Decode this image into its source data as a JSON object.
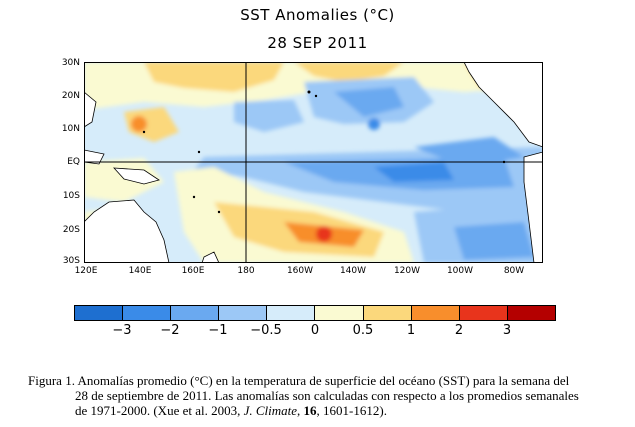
{
  "title": "SST Anomalies (°C)",
  "date": "28 SEP 2011",
  "map": {
    "lat_labels": [
      "30N",
      "20N",
      "10N",
      "EQ",
      "10S",
      "20S",
      "30S"
    ],
    "lon_labels": [
      "120E",
      "140E",
      "160E",
      "180",
      "160W",
      "140W",
      "120W",
      "100W",
      "80W"
    ],
    "extent": {
      "lon_min": 120,
      "lon_max": 290,
      "lat_min": -30,
      "lat_max": 30
    },
    "reference_lines": [
      "EQ",
      "180"
    ]
  },
  "colorbar": {
    "labels": [
      "−3",
      "−2",
      "−1",
      "−0.5",
      "0",
      "0.5",
      "1",
      "2",
      "3"
    ],
    "colors": [
      "#1e6fd0",
      "#3a8be8",
      "#6aa9f0",
      "#9cc8f6",
      "#d6ecfa",
      "#fafad2",
      "#fbd87c",
      "#f88e2c",
      "#e8341c",
      "#b40000"
    ]
  },
  "caption": {
    "line1": "Figura 1. Anomalías promedio (°C) en la temperatura de superficie del océano (SST) para la semana del",
    "line2": "28 de septiembre de 2011.  Las anomalías son calculadas con respecto a los promedios semanales",
    "line3_pre": "de 1971-2000. (Xue et al. 2003, ",
    "line3_journal": "J. Climate",
    "line3_mid": ", ",
    "line3_volume": "16",
    "line3_post": ", 1601-1612)."
  }
}
